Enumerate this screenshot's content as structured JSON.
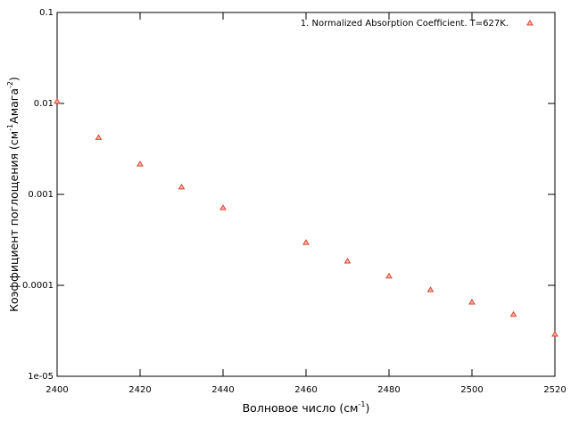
{
  "chart_data": {
    "type": "scatter",
    "xlabel_parts": [
      "Волновое число (см",
      "-1",
      ")"
    ],
    "ylabel_parts": [
      "Коэффициент поглощения (см",
      "-1",
      "Амага",
      "-2",
      ")"
    ],
    "series": [
      {
        "name": "1. Normalized Absorption Coefficient. T=627K.",
        "color": "#e0402e",
        "x": [
          2400,
          2410,
          2420,
          2430,
          2440,
          2460,
          2470,
          2480,
          2490,
          2500,
          2510,
          2520
        ],
        "values": [
          0.0105,
          0.0042,
          0.00215,
          0.0012,
          0.00071,
          0.000295,
          0.000184,
          0.000126,
          8.9e-05,
          6.52e-05,
          4.77e-05,
          2.89e-05
        ]
      }
    ],
    "xlim": [
      2400,
      2520
    ],
    "xticks": [
      2400,
      2420,
      2440,
      2460,
      2480,
      2500,
      2520
    ],
    "ylim": [
      1e-05,
      0.1
    ],
    "yticks": [
      0.1,
      0.01,
      0.001,
      0.0001,
      {
        "value": 1e-05,
        "label": "1e-05"
      }
    ],
    "ylog": true,
    "legend": "top-right"
  }
}
